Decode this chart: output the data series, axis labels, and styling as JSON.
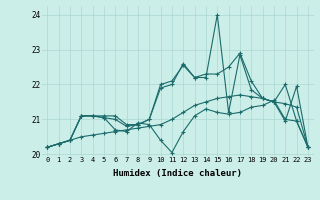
{
  "xlabel": "Humidex (Indice chaleur)",
  "background_color": "#cceee8",
  "grid_color": "#aad8d0",
  "line_color": "#1a6b6b",
  "xlim": [
    -0.5,
    23.5
  ],
  "ylim": [
    19.95,
    24.25
  ],
  "yticks": [
    20,
    21,
    22,
    23,
    24
  ],
  "xticks": [
    0,
    1,
    2,
    3,
    4,
    5,
    6,
    7,
    8,
    9,
    10,
    11,
    12,
    13,
    14,
    15,
    16,
    17,
    18,
    19,
    20,
    21,
    22,
    23
  ],
  "series": [
    [
      20.2,
      20.3,
      20.4,
      21.1,
      21.1,
      21.1,
      21.1,
      20.85,
      20.85,
      21.0,
      21.9,
      22.0,
      22.6,
      22.2,
      22.2,
      24.0,
      21.2,
      22.85,
      21.85,
      21.6,
      21.5,
      22.0,
      20.95,
      20.2
    ],
    [
      20.2,
      20.3,
      20.4,
      21.1,
      21.1,
      21.05,
      20.7,
      20.65,
      20.9,
      20.85,
      20.4,
      20.05,
      20.65,
      21.1,
      21.3,
      21.2,
      21.15,
      21.2,
      21.35,
      21.4,
      21.55,
      21.0,
      20.95,
      20.2
    ],
    [
      20.2,
      20.3,
      20.4,
      20.5,
      20.55,
      20.6,
      20.65,
      20.7,
      20.75,
      20.8,
      20.85,
      21.0,
      21.2,
      21.4,
      21.5,
      21.6,
      21.65,
      21.7,
      21.65,
      21.6,
      21.5,
      21.45,
      21.35,
      20.2
    ],
    [
      20.2,
      20.3,
      20.4,
      21.1,
      21.1,
      21.05,
      21.0,
      20.8,
      20.85,
      21.0,
      22.0,
      22.1,
      22.55,
      22.2,
      22.3,
      22.3,
      22.5,
      22.9,
      22.1,
      21.6,
      21.5,
      20.95,
      21.95,
      20.2
    ]
  ]
}
